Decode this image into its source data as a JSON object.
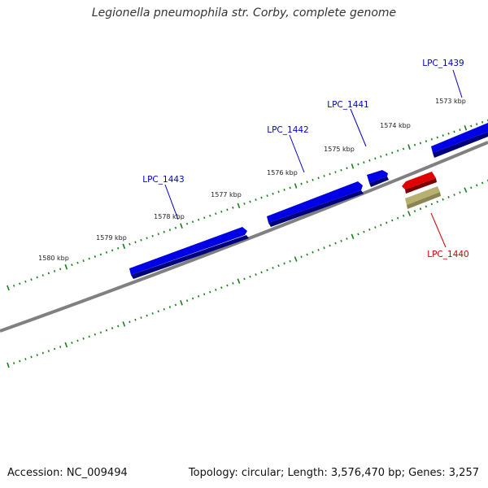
{
  "header": {
    "title": "Legionella pneumophila str. Corby, complete genome"
  },
  "footer": {
    "accession": "Accession: NC_009494",
    "summary": "Topology: circular; Length: 3,576,470 bp; Genes: 3,257"
  },
  "colors": {
    "background": "#ffffff",
    "backbone": "#808080",
    "ticks": "#1a7f1a",
    "forward_gene": "#0000e6",
    "reverse_gene": "#e00000",
    "other_feature": "#b8b070",
    "forward_label": "#0000cc",
    "reverse_label": "#cc0000",
    "tick_label": "#222222"
  },
  "scale": {
    "unit": "kbp",
    "labels": [
      {
        "kbp": 1573,
        "text": "1573 kbp"
      },
      {
        "kbp": 1574,
        "text": "1574 kbp"
      },
      {
        "kbp": 1575,
        "text": "1575 kbp"
      },
      {
        "kbp": 1576,
        "text": "1576 kbp"
      },
      {
        "kbp": 1577,
        "text": "1577 kbp"
      },
      {
        "kbp": 1578,
        "text": "1578 kbp"
      },
      {
        "kbp": 1579,
        "text": "1579 kbp"
      },
      {
        "kbp": 1580,
        "text": "1580 kbp"
      }
    ]
  },
  "genes": [
    {
      "name": "LPC_1439",
      "strand": "forward"
    },
    {
      "name": "LPC_1440",
      "strand": "reverse"
    },
    {
      "name": "LPC_1441",
      "strand": "forward"
    },
    {
      "name": "LPC_1442",
      "strand": "forward"
    },
    {
      "name": "LPC_1443",
      "strand": "forward"
    }
  ]
}
